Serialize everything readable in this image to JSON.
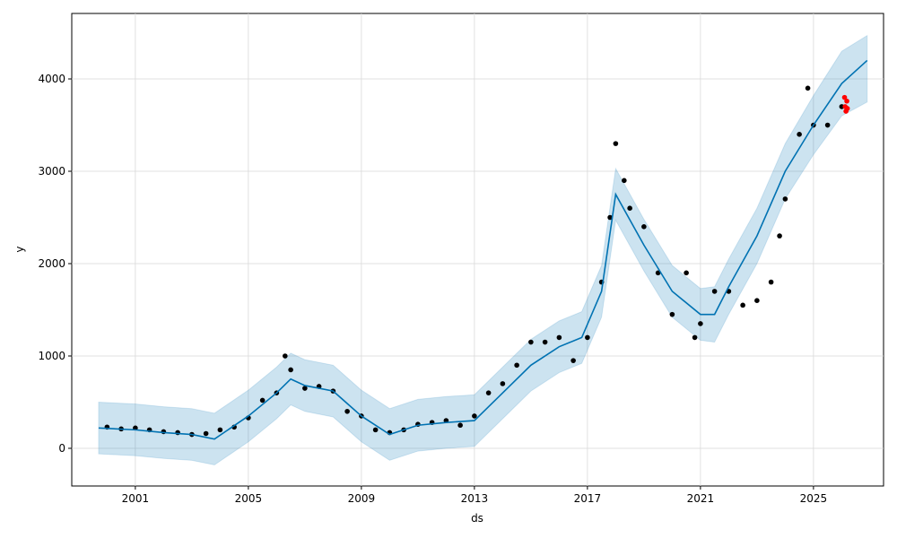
{
  "chart_data": {
    "type": "forecast",
    "x_label": "ds",
    "y_label": "y",
    "xlim": [
      1998.75,
      2027.48
    ],
    "ylim": [
      -408,
      4709
    ],
    "xticks": [
      2001,
      2005,
      2009,
      2013,
      2017,
      2021,
      2025
    ],
    "yticks": [
      0,
      1000,
      2000,
      3000,
      4000
    ],
    "grid": true,
    "observed": {
      "color": "#000000",
      "x": [
        2000.0,
        2000.5,
        2001.0,
        2001.5,
        2002.0,
        2002.5,
        2003.0,
        2003.5,
        2004.0,
        2004.5,
        2005.0,
        2005.5,
        2006.0,
        2006.3,
        2006.5,
        2007.0,
        2007.5,
        2008.0,
        2008.5,
        2009.0,
        2009.5,
        2010.0,
        2010.5,
        2011.0,
        2011.5,
        2012.0,
        2012.5,
        2013.0,
        2013.5,
        2014.0,
        2014.5,
        2015.0,
        2015.5,
        2016.0,
        2016.5,
        2017.0,
        2017.5,
        2017.8,
        2018.0,
        2018.3,
        2018.5,
        2019.0,
        2019.5,
        2020.0,
        2020.5,
        2020.8,
        2021.0,
        2021.5,
        2022.0,
        2022.5,
        2023.0,
        2023.5,
        2023.8,
        2024.0,
        2024.5,
        2024.8,
        2025.0,
        2025.5,
        2026.0
      ],
      "values": [
        230,
        210,
        220,
        200,
        180,
        170,
        150,
        160,
        200,
        230,
        330,
        520,
        600,
        1000,
        850,
        650,
        670,
        620,
        400,
        350,
        200,
        170,
        200,
        260,
        280,
        300,
        250,
        350,
        600,
        700,
        900,
        1150,
        1150,
        1200,
        950,
        1200,
        1800,
        2500,
        3300,
        2900,
        2600,
        2400,
        1900,
        1450,
        1900,
        1200,
        1350,
        1700,
        1700,
        1550,
        1600,
        1800,
        2300,
        2700,
        3400,
        3900,
        3500,
        3500,
        3700
      ]
    },
    "forecast": {
      "color": "#0072B2",
      "x": [
        1999.7,
        2001.0,
        2002.0,
        2003.0,
        2003.8,
        2005.0,
        2006.0,
        2006.5,
        2007.0,
        2008.0,
        2009.0,
        2010.0,
        2011.0,
        2012.0,
        2013.0,
        2014.0,
        2015.0,
        2016.0,
        2016.8,
        2017.5,
        2018.0,
        2019.0,
        2020.0,
        2021.0,
        2021.5,
        2022.0,
        2023.0,
        2024.0,
        2025.0,
        2026.0,
        2026.9
      ],
      "values": [
        220,
        200,
        170,
        150,
        100,
        350,
        600,
        750,
        680,
        620,
        350,
        150,
        250,
        280,
        300,
        600,
        900,
        1100,
        1200,
        1700,
        2750,
        2200,
        1700,
        1450,
        1450,
        1750,
        2300,
        3000,
        3500,
        3950,
        4200
      ],
      "lower": [
        -60,
        -80,
        -110,
        -130,
        -180,
        70,
        320,
        470,
        400,
        340,
        70,
        -130,
        -30,
        0,
        20,
        320,
        620,
        820,
        920,
        1420,
        2470,
        1920,
        1420,
        1170,
        1150,
        1450,
        2000,
        2700,
        3180,
        3600,
        3750
      ],
      "upper": [
        500,
        480,
        450,
        430,
        380,
        630,
        880,
        1030,
        960,
        900,
        630,
        430,
        530,
        560,
        580,
        880,
        1180,
        1380,
        1480,
        1980,
        3030,
        2480,
        1980,
        1730,
        1750,
        2050,
        2600,
        3300,
        3820,
        4300,
        4470
      ]
    },
    "holdout": {
      "color": "#ff0000",
      "x": [
        2026.1,
        2026.12,
        2026.15,
        2026.18,
        2026.2
      ],
      "values": [
        3800,
        3700,
        3650,
        3760,
        3680
      ]
    }
  }
}
